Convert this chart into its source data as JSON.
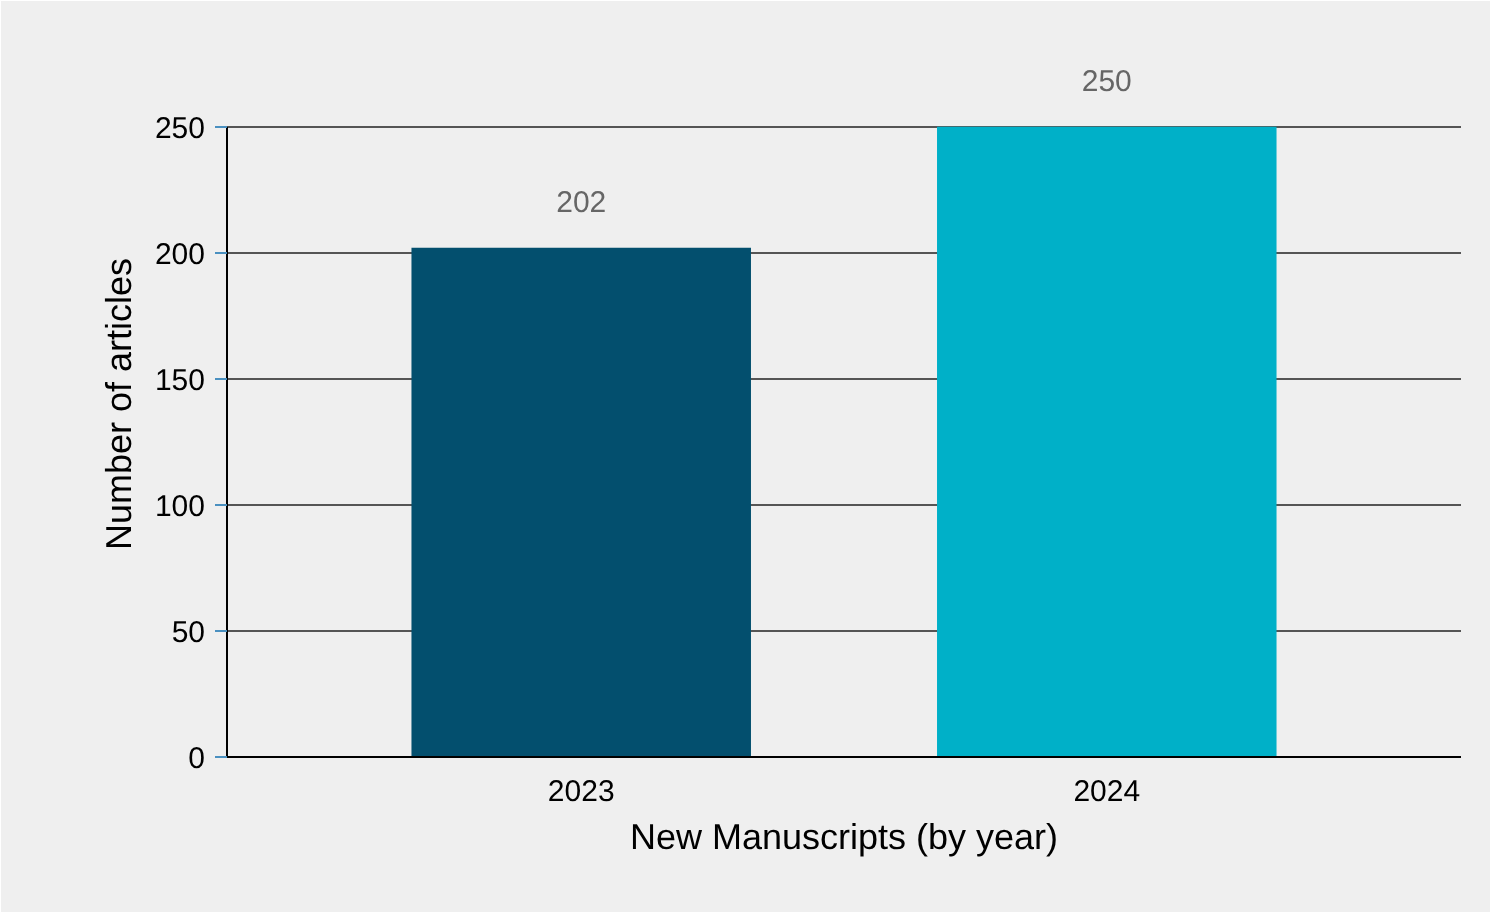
{
  "chart_data": {
    "type": "bar",
    "xlabel": "New Manuscripts (by year)",
    "ylabel": "Number of articles",
    "categories": [
      "2023",
      "2024"
    ],
    "values": [
      202,
      250
    ],
    "colors": [
      "#034f6e",
      "#00b0c8"
    ],
    "ylim": [
      0,
      250
    ],
    "yticks": [
      0,
      50,
      100,
      150,
      200,
      250
    ],
    "grid": "y",
    "data_labels": true
  }
}
